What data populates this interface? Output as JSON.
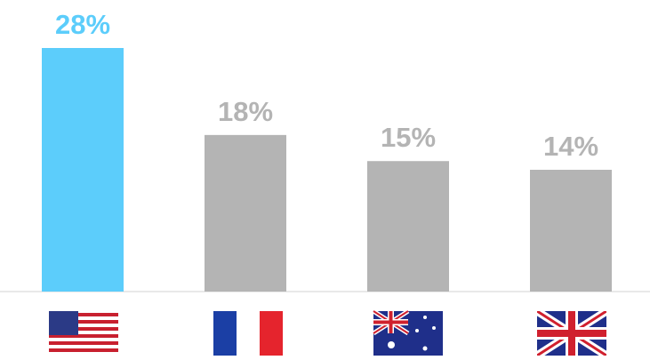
{
  "chart_data": {
    "type": "bar",
    "categories": [
      null,
      null,
      null,
      null
    ],
    "values": [
      28,
      18,
      15,
      14
    ],
    "value_labels": [
      "28%",
      "18%",
      "15%",
      "14%"
    ],
    "colors": [
      "#5ccdfb",
      "#b4b4b4",
      "#b4b4b4",
      "#b4b4b4"
    ]
  }
}
